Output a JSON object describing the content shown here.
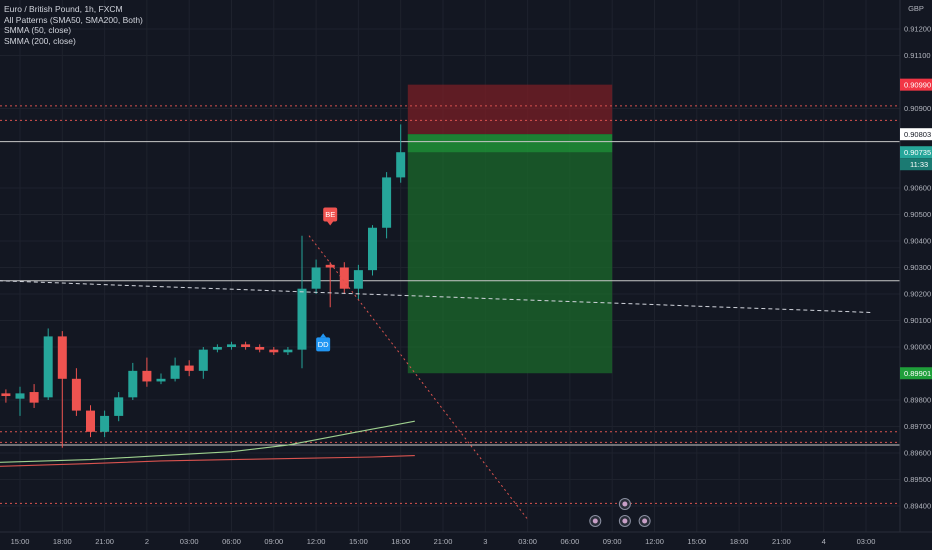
{
  "legend": {
    "symbol": "Euro / British Pound, 1h, FXCM",
    "indicators": [
      "All Patterns (SMA50, SMA200, Both)",
      "SMMA (50, close)",
      "SMMA (200, close)"
    ]
  },
  "colors": {
    "background": "#131722",
    "grid": "#1e222d",
    "bull": "#26a69a",
    "bear": "#ef5350",
    "stop_zone": "#7a1f26",
    "target_zone": "#1b6a2b",
    "smma50": "#9fd18f",
    "smma200": "#d9534f"
  },
  "chart_data": {
    "type": "candlestick",
    "currency": "GBP",
    "ylim": [
      0.89365,
      0.91283
    ],
    "y_ticks": [
      "0.91200",
      "0.91100",
      "0.90900",
      "0.90600",
      "0.90500",
      "0.90400",
      "0.90300",
      "0.90200",
      "0.90100",
      "0.90000",
      "0.89800",
      "0.89700",
      "0.89600",
      "0.89500",
      "0.89400"
    ],
    "x_ticks": [
      "15:00",
      "18:00",
      "21:00",
      "2",
      "03:00",
      "06:00",
      "09:00",
      "12:00",
      "15:00",
      "18:00",
      "21:00",
      "3",
      "03:00",
      "06:00",
      "09:00",
      "12:00",
      "15:00",
      "18:00",
      "21:00",
      "4",
      "03:00"
    ],
    "x_tick_hours": [
      0,
      3,
      6,
      9,
      12,
      15,
      18,
      21,
      24,
      27,
      30,
      33,
      36,
      39,
      42,
      45,
      48,
      51,
      54,
      57,
      60
    ],
    "candles": [
      {
        "h": -1,
        "o": 0.89825,
        "c": 0.89815,
        "hi": 0.8984,
        "lo": 0.8979
      },
      {
        "h": 0,
        "o": 0.89805,
        "c": 0.89825,
        "hi": 0.8985,
        "lo": 0.8974
      },
      {
        "h": 1,
        "o": 0.8983,
        "c": 0.8979,
        "hi": 0.8986,
        "lo": 0.8977
      },
      {
        "h": 2,
        "o": 0.8981,
        "c": 0.9004,
        "hi": 0.9007,
        "lo": 0.898
      },
      {
        "h": 3,
        "o": 0.9004,
        "c": 0.8988,
        "hi": 0.9006,
        "lo": 0.8962
      },
      {
        "h": 4,
        "o": 0.8988,
        "c": 0.8976,
        "hi": 0.8992,
        "lo": 0.8974
      },
      {
        "h": 5,
        "o": 0.8976,
        "c": 0.8968,
        "hi": 0.8978,
        "lo": 0.8966
      },
      {
        "h": 6,
        "o": 0.8968,
        "c": 0.8974,
        "hi": 0.8976,
        "lo": 0.8966
      },
      {
        "h": 7,
        "o": 0.8974,
        "c": 0.8981,
        "hi": 0.8983,
        "lo": 0.8972
      },
      {
        "h": 8,
        "o": 0.8981,
        "c": 0.8991,
        "hi": 0.8994,
        "lo": 0.898
      },
      {
        "h": 9,
        "o": 0.8991,
        "c": 0.8987,
        "hi": 0.8996,
        "lo": 0.8985
      },
      {
        "h": 10,
        "o": 0.8987,
        "c": 0.8988,
        "hi": 0.899,
        "lo": 0.8986
      },
      {
        "h": 11,
        "o": 0.8988,
        "c": 0.8993,
        "hi": 0.8996,
        "lo": 0.8987
      },
      {
        "h": 12,
        "o": 0.8993,
        "c": 0.8991,
        "hi": 0.8995,
        "lo": 0.8989
      },
      {
        "h": 13,
        "o": 0.8991,
        "c": 0.8999,
        "hi": 0.9,
        "lo": 0.8988
      },
      {
        "h": 14,
        "o": 0.8999,
        "c": 0.9,
        "hi": 0.9001,
        "lo": 0.8998
      },
      {
        "h": 15,
        "o": 0.9,
        "c": 0.9001,
        "hi": 0.9002,
        "lo": 0.8999
      },
      {
        "h": 16,
        "o": 0.9001,
        "c": 0.9,
        "hi": 0.9002,
        "lo": 0.8999
      },
      {
        "h": 17,
        "o": 0.9,
        "c": 0.8999,
        "hi": 0.9001,
        "lo": 0.8998
      },
      {
        "h": 18,
        "o": 0.8999,
        "c": 0.8998,
        "hi": 0.9,
        "lo": 0.8997
      },
      {
        "h": 19,
        "o": 0.8998,
        "c": 0.8999,
        "hi": 0.9,
        "lo": 0.8997
      },
      {
        "h": 20,
        "o": 0.8999,
        "c": 0.9022,
        "hi": 0.9042,
        "lo": 0.8992
      },
      {
        "h": 21,
        "o": 0.9022,
        "c": 0.903,
        "hi": 0.9033,
        "lo": 0.902
      },
      {
        "h": 22,
        "o": 0.9031,
        "c": 0.903,
        "hi": 0.9032,
        "lo": 0.9015
      },
      {
        "h": 23,
        "o": 0.903,
        "c": 0.9022,
        "hi": 0.9032,
        "lo": 0.902
      },
      {
        "h": 24,
        "o": 0.9022,
        "c": 0.9029,
        "hi": 0.9031,
        "lo": 0.9018
      },
      {
        "h": 25,
        "o": 0.9029,
        "c": 0.9045,
        "hi": 0.9046,
        "lo": 0.9027
      },
      {
        "h": 26,
        "o": 0.9045,
        "c": 0.9064,
        "hi": 0.9066,
        "lo": 0.9041
      },
      {
        "h": 27,
        "o": 0.9064,
        "c": 0.90735,
        "hi": 0.9084,
        "lo": 0.9062
      }
    ],
    "smma50": {
      "from": [
        -1.5,
        0.8973
      ],
      "to": [
        28,
        0.8972
      ],
      "points": [
        [
          -1.5,
          0.89565
        ],
        [
          5,
          0.89575
        ],
        [
          10,
          0.8959
        ],
        [
          15,
          0.89605
        ],
        [
          19,
          0.8963
        ],
        [
          22,
          0.8966
        ],
        [
          25,
          0.8969
        ],
        [
          28,
          0.8972
        ]
      ]
    },
    "smma200": {
      "points": [
        [
          -1.5,
          0.8955
        ],
        [
          5,
          0.8956
        ],
        [
          10,
          0.8957
        ],
        [
          15,
          0.89575
        ],
        [
          20,
          0.8958
        ],
        [
          25,
          0.89585
        ],
        [
          28,
          0.8959
        ]
      ]
    },
    "horizontal_lines": [
      {
        "price": 0.90775,
        "style": "solid",
        "color": "#c8c8c8"
      },
      {
        "price": 0.9025,
        "style": "solid",
        "color": "#c8c8c8"
      },
      {
        "price": 0.8963,
        "style": "solid",
        "color": "#c8c8c8"
      },
      {
        "price": 0.9091,
        "style": "dotted",
        "color": "#d9534f"
      },
      {
        "price": 0.90855,
        "style": "dotted",
        "color": "#d9534f"
      },
      {
        "price": 0.8968,
        "style": "dotted",
        "color": "#d9534f"
      },
      {
        "price": 0.8964,
        "style": "dotted",
        "color": "#d9534f"
      },
      {
        "price": 0.8941,
        "style": "dotted",
        "color": "#d9534f"
      }
    ],
    "trendlines": [
      {
        "from": [
          -1.5,
          0.9025
        ],
        "to": [
          60.5,
          0.9013
        ],
        "style": "dashed",
        "color": "#d1d4dc"
      },
      {
        "from": [
          20.5,
          0.9042
        ],
        "to": [
          36,
          0.8935
        ],
        "style": "dotted",
        "color": "#d9534f"
      }
    ],
    "position": {
      "type": "short",
      "from_hour": 28,
      "to_hour": 42,
      "entry": 0.90803,
      "stop": 0.9099,
      "target": 0.89901
    },
    "price_tags": [
      {
        "price": 0.9099,
        "label": "0.90990",
        "bg": "#f23645",
        "fg": "#ffffff"
      },
      {
        "price": 0.90803,
        "label": "0.90803",
        "bg": "#ffffff",
        "fg": "#131722"
      },
      {
        "price": 0.90735,
        "label": "0.90735",
        "bg": "#26a69a",
        "fg": "#ffffff"
      },
      {
        "price": 0.89901,
        "label": "0.89901",
        "bg": "#1f9e3a",
        "fg": "#ffffff"
      }
    ],
    "countdown": "11:33",
    "pattern_labels": [
      {
        "text": "BE",
        "hour": 22,
        "price": 0.905,
        "bg": "#ef5350",
        "direction": "down"
      },
      {
        "text": "DD",
        "hour": 21.5,
        "price": 0.9001,
        "bg": "#2196f3",
        "direction": "up"
      }
    ]
  }
}
